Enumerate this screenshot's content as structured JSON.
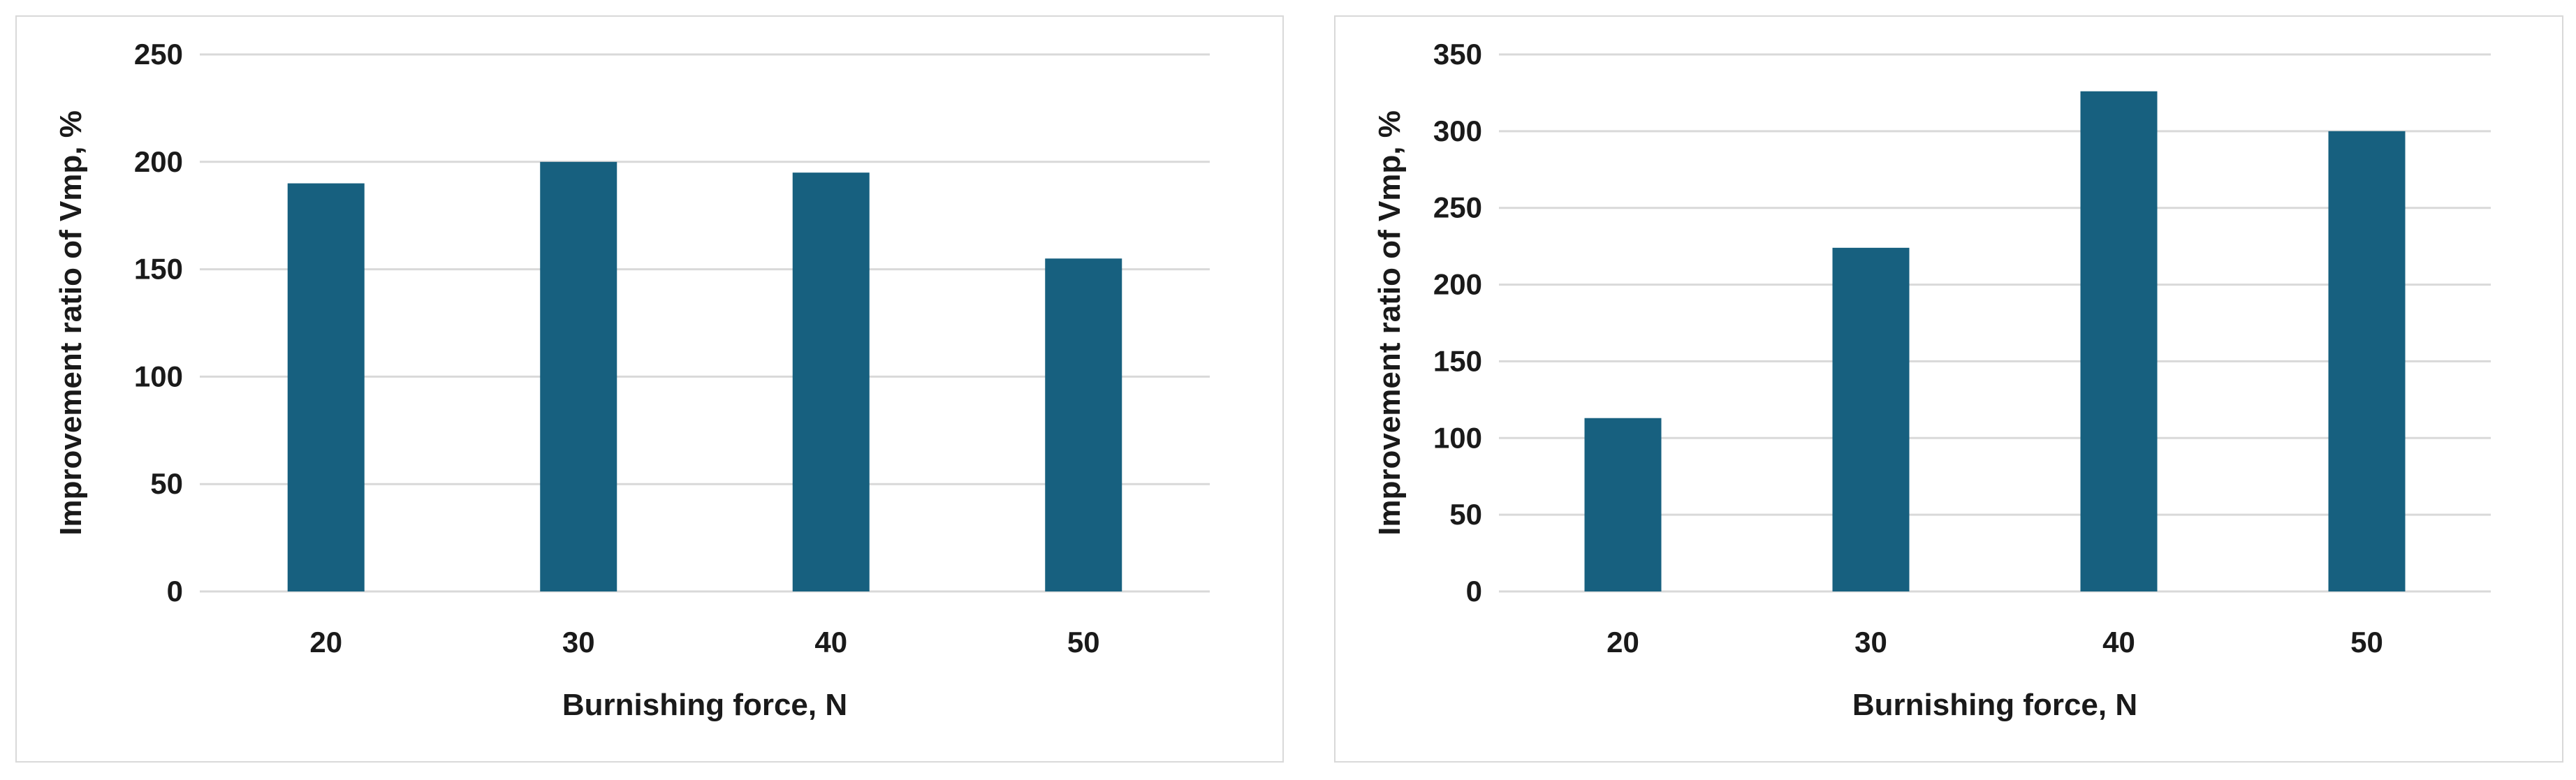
{
  "chart_data": [
    {
      "type": "bar",
      "categories": [
        "20",
        "30",
        "40",
        "50"
      ],
      "values": [
        190,
        200,
        195,
        155
      ],
      "xlabel": "Burnishing force, N",
      "ylabel": "Improvement ratio of Vmp, %",
      "ylim": [
        0,
        250
      ],
      "yticks": [
        0,
        50,
        100,
        150,
        200,
        250
      ],
      "grid": true,
      "color": "#17607f"
    },
    {
      "type": "bar",
      "categories": [
        "20",
        "30",
        "40",
        "50"
      ],
      "values": [
        113,
        224,
        326,
        300
      ],
      "xlabel": "Burnishing force, N",
      "ylabel": "Improvement ratio of Vmp, %",
      "ylim": [
        0,
        350
      ],
      "yticks": [
        0,
        50,
        100,
        150,
        200,
        250,
        300,
        350
      ],
      "grid": true,
      "color": "#17607f"
    }
  ]
}
